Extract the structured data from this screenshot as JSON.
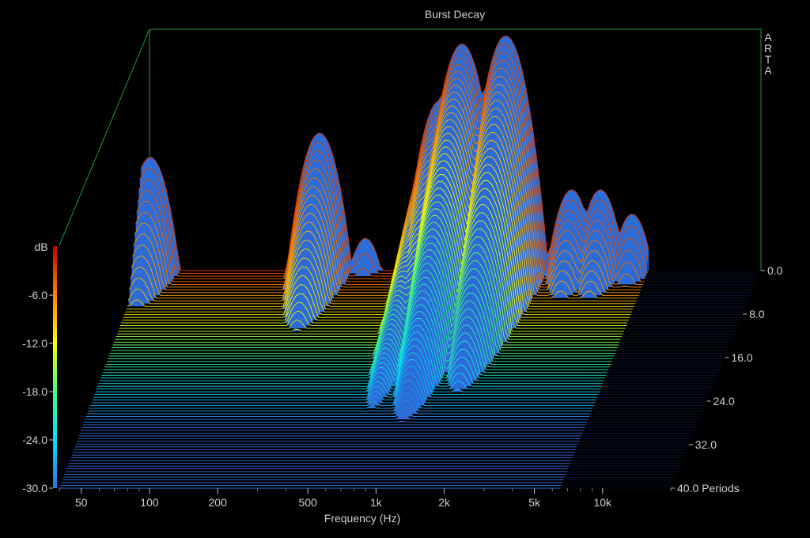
{
  "chart_data": {
    "type": "waterfall-3d",
    "title": "Burst Decay",
    "brand": "ARTA",
    "xlabel": "Frequency (Hz)",
    "zlabel": "dB",
    "z_ticks": [
      "-6.0",
      "-12.0",
      "-18.0",
      "-24.0",
      "-30.0"
    ],
    "zlim": [
      -30,
      0
    ],
    "x_scale": "log",
    "xlim": [
      40,
      20000
    ],
    "x_ticks": [
      {
        "label": "50",
        "value": 50
      },
      {
        "label": "100",
        "value": 100
      },
      {
        "label": "200",
        "value": 200
      },
      {
        "label": "500",
        "value": 500
      },
      {
        "label": "1k",
        "value": 1000
      },
      {
        "label": "2k",
        "value": 2000
      },
      {
        "label": "5k",
        "value": 5000
      },
      {
        "label": "10k",
        "value": 10000
      }
    ],
    "y_ticks": [
      "0.0",
      "8.0",
      "16.0",
      "24.0",
      "32.0",
      "40.0 Periods"
    ],
    "ylim": [
      0,
      40
    ],
    "slice_count": 80,
    "peaks": [
      {
        "freq": 44,
        "level": -16,
        "decay": 9
      },
      {
        "freq": 240,
        "level": -13,
        "decay": 12
      },
      {
        "freq": 380,
        "level": -26,
        "decay": 6
      },
      {
        "freq": 800,
        "level": -9,
        "decay": 16
      },
      {
        "freq": 1000,
        "level": -2,
        "decay": 18
      },
      {
        "freq": 1550,
        "level": -1,
        "decay": 14
      },
      {
        "freq": 700,
        "level": -17,
        "decay": 36
      },
      {
        "freq": 3000,
        "level": -20,
        "decay": 10
      },
      {
        "freq": 4000,
        "level": -20,
        "decay": 10
      },
      {
        "freq": 5500,
        "level": -23,
        "decay": 8
      }
    ],
    "colors": [
      "#2f6fe0",
      "#00e0ff",
      "#40ff80",
      "#ffff00",
      "#ff8000",
      "#c00000"
    ]
  }
}
